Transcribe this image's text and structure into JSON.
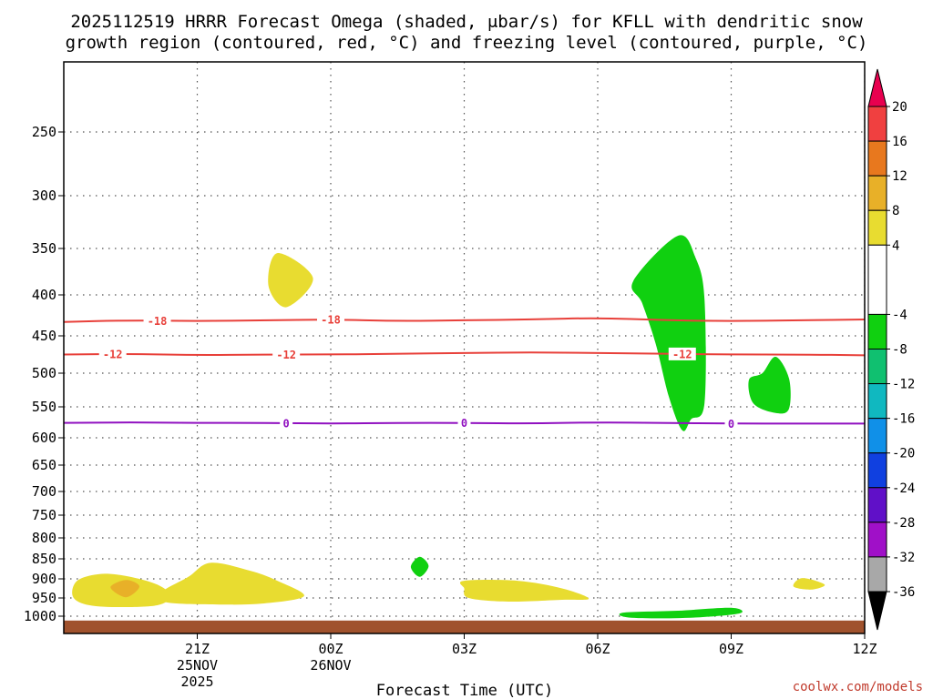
{
  "chart_data": {
    "type": "time-height",
    "title_line1": "2025112519 HRRR Forecast Omega (shaded, μbar/s) for KFLL with dendritic snow",
    "title_line2": "growth region (contoured, red, °C) and freezing level (contoured, purple, °C)",
    "xlabel": "Forecast Time (UTC)",
    "credit": "coolwx.com/models",
    "x_range_hours": [
      -3.0,
      15.0
    ],
    "x_ticks": [
      {
        "hour": 0,
        "label": "21Z",
        "sub1": "25NOV",
        "sub2": "2025"
      },
      {
        "hour": 3,
        "label": "00Z",
        "sub1": "26NOV",
        "sub2": ""
      },
      {
        "hour": 6,
        "label": "03Z",
        "sub1": "",
        "sub2": ""
      },
      {
        "hour": 9,
        "label": "06Z",
        "sub1": "",
        "sub2": ""
      },
      {
        "hour": 12,
        "label": "09Z",
        "sub1": "",
        "sub2": ""
      },
      {
        "hour": 15,
        "label": "12Z",
        "sub1": "",
        "sub2": ""
      }
    ],
    "y_ticks_hpa": [
      250,
      300,
      350,
      400,
      450,
      500,
      550,
      600,
      650,
      700,
      750,
      800,
      850,
      900,
      950,
      1000
    ],
    "y_range_hpa": [
      200,
      1035
    ],
    "ground_band_hpa": [
      1012,
      1035
    ],
    "colorbar": {
      "levels": [
        20,
        16,
        12,
        8,
        4,
        -4,
        -8,
        -12,
        -16,
        -20,
        -24,
        -28,
        -32,
        -36
      ],
      "colors": [
        "#e8004f",
        "#f04040",
        "#e8781e",
        "#e8b028",
        "#e8dc30",
        "#ffffff",
        "#10d010",
        "#10c070",
        "#10b8c0",
        "#1090e8",
        "#1040e0",
        "#6010c8",
        "#a010c8",
        "#a8a8a8",
        "#000000"
      ]
    },
    "contours": [
      {
        "name": "dgz-minus-18",
        "label": "-18",
        "color": "#e8403a",
        "pressures_hpa": [
          433,
          431,
          432,
          431,
          430,
          432,
          431,
          430,
          428,
          431,
          432,
          431,
          430
        ],
        "label_hours": [
          -0.9,
          3.0
        ]
      },
      {
        "name": "dgz-minus-12",
        "label": "-12",
        "color": "#e8403a",
        "pressures_hpa": [
          475,
          474,
          476,
          475,
          475,
          474,
          473,
          472,
          473,
          474,
          475,
          475,
          476
        ],
        "label_hours": [
          -1.9,
          2.0,
          10.9
        ]
      },
      {
        "name": "freezing-level-0",
        "label": "0",
        "color": "#9010c0",
        "pressures_hpa": [
          576,
          575,
          576,
          576,
          577,
          576,
          576,
          577,
          575,
          576,
          577,
          577,
          577
        ],
        "label_hours": [
          2.0,
          6.0,
          12.0
        ]
      }
    ],
    "omega_regions": [
      {
        "name": "omega-pos-4-upper",
        "value_band": "4 to 8",
        "color": "#e8dc30",
        "points": [
          [
            1.8,
            355
          ],
          [
            2.6,
            382
          ],
          [
            2.0,
            415
          ],
          [
            1.6,
            390
          ]
        ]
      },
      {
        "name": "omega-pos-4-lowleft",
        "value_band": "4 to 8",
        "color": "#e8dc30",
        "points": [
          [
            -2.7,
            905
          ],
          [
            -2.2,
            888
          ],
          [
            -1.6,
            893
          ],
          [
            -0.9,
            915
          ],
          [
            -0.6,
            945
          ],
          [
            -0.9,
            970
          ],
          [
            -1.8,
            975
          ],
          [
            -2.5,
            968
          ],
          [
            -2.8,
            945
          ]
        ]
      },
      {
        "name": "omega-pos-8-lowleft",
        "value_band": "8 to 12",
        "color": "#e8b028",
        "points": [
          [
            -1.6,
            903
          ],
          [
            -1.3,
            920
          ],
          [
            -1.6,
            948
          ],
          [
            -1.95,
            922
          ]
        ]
      },
      {
        "name": "omega-pos-4-lowmid",
        "value_band": "4 to 8",
        "color": "#e8dc30",
        "points": [
          [
            -0.8,
            935
          ],
          [
            -0.2,
            895
          ],
          [
            0.3,
            860
          ],
          [
            1.2,
            880
          ],
          [
            1.8,
            905
          ],
          [
            2.4,
            945
          ],
          [
            1.5,
            965
          ],
          [
            0.5,
            968
          ],
          [
            -0.7,
            962
          ]
        ]
      },
      {
        "name": "omega-pos-4-center",
        "value_band": "4 to 8",
        "color": "#e8dc30",
        "points": [
          [
            6.0,
            905
          ],
          [
            7.2,
            905
          ],
          [
            8.2,
            925
          ],
          [
            8.8,
            952
          ],
          [
            8.2,
            955
          ],
          [
            7.0,
            960
          ],
          [
            6.1,
            950
          ],
          [
            6.0,
            925
          ]
        ]
      },
      {
        "name": "omega-pos-4-right",
        "value_band": "4 to 8",
        "color": "#e8dc30",
        "points": [
          [
            13.6,
            898
          ],
          [
            14.1,
            915
          ],
          [
            13.8,
            928
          ],
          [
            13.4,
            920
          ]
        ]
      },
      {
        "name": "omega-neg-4-tall",
        "value_band": "-4 to -8",
        "color": "#10d010",
        "points": [
          [
            10.8,
            338
          ],
          [
            11.2,
            360
          ],
          [
            11.4,
            405
          ],
          [
            11.4,
            545
          ],
          [
            11.1,
            570
          ],
          [
            10.9,
            588
          ],
          [
            10.6,
            535
          ],
          [
            10.3,
            460
          ],
          [
            10.0,
            410
          ],
          [
            9.8,
            385
          ]
        ]
      },
      {
        "name": "omega-neg-4-midright",
        "value_band": "-4 to -8",
        "color": "#10d010",
        "points": [
          [
            13.0,
            478
          ],
          [
            13.3,
            508
          ],
          [
            13.3,
            553
          ],
          [
            13.0,
            560
          ],
          [
            12.5,
            545
          ],
          [
            12.4,
            510
          ],
          [
            12.7,
            500
          ]
        ]
      },
      {
        "name": "omega-neg-4-low",
        "value_band": "-4 to -8",
        "color": "#10d010",
        "points": [
          [
            5.0,
            845
          ],
          [
            5.2,
            868
          ],
          [
            5.0,
            895
          ],
          [
            4.8,
            870
          ]
        ]
      },
      {
        "name": "omega-neg-4-bottom",
        "value_band": "-4 to -8",
        "color": "#10d010",
        "points": [
          [
            9.6,
            990
          ],
          [
            10.8,
            985
          ],
          [
            12.0,
            977
          ],
          [
            12.2,
            992
          ],
          [
            11.3,
            1003
          ],
          [
            10.2,
            1006
          ],
          [
            9.6,
            1002
          ]
        ]
      }
    ]
  }
}
